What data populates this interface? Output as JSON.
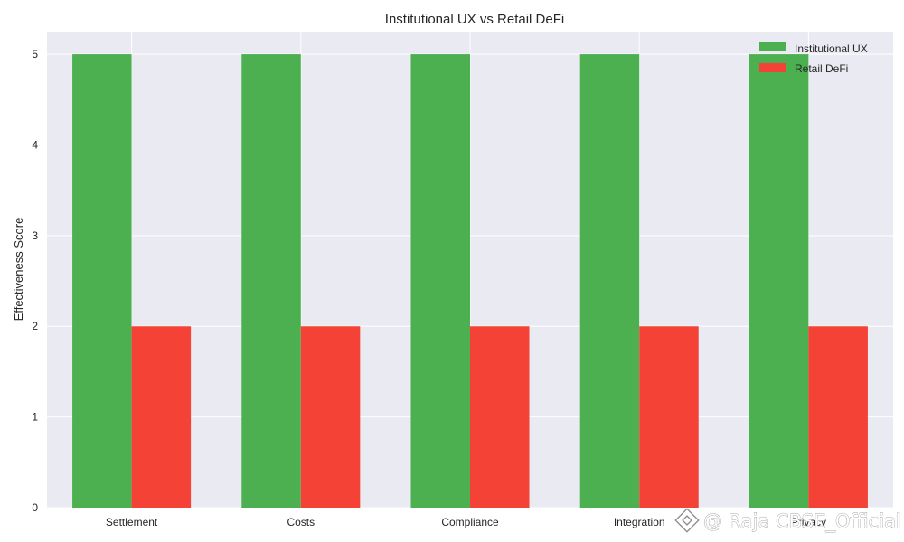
{
  "chart_data": {
    "type": "bar",
    "title": "Institutional UX vs Retail DeFi",
    "xlabel": "",
    "ylabel": "Effectiveness Score",
    "categories": [
      "Settlement",
      "Costs",
      "Compliance",
      "Integration",
      "Privacy"
    ],
    "series": [
      {
        "name": "Institutional UX",
        "values": [
          5,
          5,
          5,
          5,
          5
        ],
        "color": "#4caf50"
      },
      {
        "name": "Retail DeFi",
        "values": [
          2,
          2,
          2,
          2,
          2
        ],
        "color": "#f44336"
      }
    ],
    "ylim": [
      0,
      5.25
    ],
    "yticks": [
      "0",
      "1",
      "2",
      "3",
      "4",
      "5"
    ],
    "grid": true,
    "legend_position": "top-right",
    "plot_background": "#eaeaf2",
    "grid_color": "#ffffff"
  },
  "watermark": {
    "text": "@ Raja CBSE_Official",
    "icon": "binance-logo-icon"
  }
}
